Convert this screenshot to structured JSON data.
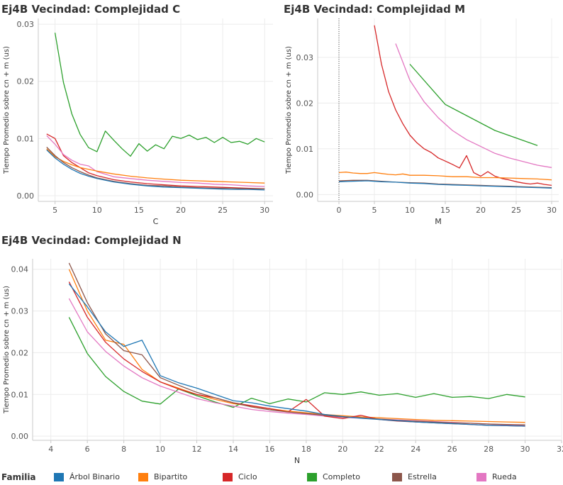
{
  "chart_data": [
    {
      "type": "line",
      "title": "Ej4B Vecindad: Complejidad C",
      "xlabel": "C",
      "ylabel": "Tiempo Promedio sobre cn + m (us)",
      "xlim": [
        3,
        31
      ],
      "ylim": [
        -0.001,
        0.031
      ],
      "xticks": [
        5,
        10,
        15,
        20,
        25,
        30
      ],
      "yticks": [
        0.0,
        0.01,
        0.02,
        0.03
      ],
      "ytick_labels": [
        "0.00",
        "0.01",
        "0.02",
        "0.03"
      ],
      "grid": true,
      "series": [
        {
          "name": "Completo",
          "color": "#2ca02c",
          "x": [
            5,
            6,
            7,
            8,
            9,
            10,
            11,
            12,
            13,
            14,
            15,
            16,
            17,
            18,
            19,
            20,
            21,
            22,
            23,
            24,
            25,
            26,
            27,
            28,
            29,
            30
          ],
          "y": [
            0.0285,
            0.0198,
            0.0143,
            0.0107,
            0.0084,
            0.0077,
            0.0113,
            0.0097,
            0.0082,
            0.0069,
            0.0091,
            0.0078,
            0.0089,
            0.0082,
            0.0104,
            0.01,
            0.0106,
            0.0098,
            0.0102,
            0.0093,
            0.0102,
            0.0093,
            0.0095,
            0.009,
            0.01,
            0.0094
          ]
        },
        {
          "name": "Ciclo",
          "color": "#d62728",
          "x": [
            4,
            5,
            6,
            7,
            8,
            9,
            10,
            12,
            14,
            16,
            18,
            20,
            22,
            24,
            26,
            28,
            30
          ],
          "y": [
            0.0108,
            0.01,
            0.007,
            0.0058,
            0.0049,
            0.004,
            0.0035,
            0.0028,
            0.0024,
            0.0021,
            0.0019,
            0.0017,
            0.0016,
            0.0015,
            0.0014,
            0.0013,
            0.0012
          ]
        },
        {
          "name": "Rueda",
          "color": "#e377c2",
          "x": [
            4,
            5,
            6,
            7,
            8,
            9,
            10,
            12,
            14,
            16,
            18,
            20,
            22,
            24,
            26,
            28,
            30
          ],
          "y": [
            0.0105,
            0.009,
            0.0072,
            0.0062,
            0.0055,
            0.0052,
            0.0042,
            0.0033,
            0.003,
            0.0027,
            0.0025,
            0.0023,
            0.0022,
            0.002,
            0.0019,
            0.0017,
            0.0016
          ]
        },
        {
          "name": "Bipartito",
          "color": "#ff7f0e",
          "x": [
            4,
            5,
            6,
            7,
            8,
            9,
            10,
            12,
            14,
            16,
            18,
            20,
            22,
            24,
            26,
            28,
            30
          ],
          "y": [
            0.0082,
            0.0068,
            0.006,
            0.0054,
            0.0049,
            0.0046,
            0.0043,
            0.0038,
            0.0034,
            0.0031,
            0.0029,
            0.0027,
            0.0026,
            0.0025,
            0.0024,
            0.0023,
            0.0022
          ]
        },
        {
          "name": "Estrella",
          "color": "#8c564b",
          "x": [
            4,
            5,
            6,
            7,
            8,
            9,
            10,
            12,
            14,
            16,
            18,
            20,
            22,
            24,
            26,
            28,
            30
          ],
          "y": [
            0.0085,
            0.007,
            0.0058,
            0.0049,
            0.0042,
            0.0036,
            0.0031,
            0.0025,
            0.0021,
            0.0018,
            0.0017,
            0.0015,
            0.0014,
            0.0013,
            0.0013,
            0.0012,
            0.0012
          ]
        },
        {
          "name": "Árbol Binario",
          "color": "#1f77b4",
          "x": [
            4,
            5,
            6,
            7,
            8,
            9,
            10,
            12,
            14,
            16,
            18,
            20,
            22,
            24,
            26,
            28,
            30
          ],
          "y": [
            0.008,
            0.0066,
            0.0055,
            0.0046,
            0.0039,
            0.0034,
            0.003,
            0.0024,
            0.002,
            0.0017,
            0.0015,
            0.0014,
            0.0013,
            0.0012,
            0.0011,
            0.0011,
            0.001
          ]
        }
      ]
    },
    {
      "type": "line",
      "title": "Ej4B Vecindad: Complejidad M",
      "xlabel": "M",
      "ylabel": "Tiempo Promedio sobre cn + m (us)",
      "xlim": [
        -3,
        31
      ],
      "ylim": [
        -0.0015,
        0.0385
      ],
      "xticks": [
        0,
        5,
        10,
        15,
        20,
        25,
        30
      ],
      "yticks": [
        0.0,
        0.01,
        0.02,
        0.03
      ],
      "ytick_labels": [
        "0.00",
        "0.01",
        "0.02",
        "0.03"
      ],
      "grid": true,
      "series": [
        {
          "name": "Ciclo",
          "color": "#d62728",
          "x": [
            5,
            6,
            7,
            8,
            9,
            10,
            11,
            12,
            13,
            14,
            15,
            16,
            17,
            18,
            19,
            20,
            21,
            22,
            23,
            24,
            25,
            26,
            27,
            28,
            29,
            30
          ],
          "y": [
            0.037,
            0.0285,
            0.0225,
            0.0185,
            0.0155,
            0.013,
            0.0113,
            0.01,
            0.0092,
            0.008,
            0.0073,
            0.0066,
            0.0058,
            0.0085,
            0.0048,
            0.004,
            0.005,
            0.004,
            0.0035,
            0.0032,
            0.0028,
            0.0025,
            0.0023,
            0.0025,
            0.0022,
            0.002
          ]
        },
        {
          "name": "Rueda",
          "color": "#e377c2",
          "x": [
            8,
            10,
            12,
            14,
            16,
            18,
            20,
            22,
            24,
            26,
            28,
            30
          ],
          "y": [
            0.033,
            0.025,
            0.0203,
            0.0168,
            0.014,
            0.012,
            0.0105,
            0.009,
            0.008,
            0.0072,
            0.0064,
            0.0059
          ]
        },
        {
          "name": "Completo",
          "color": "#2ca02c",
          "x": [
            10,
            15,
            22,
            28
          ],
          "y": [
            0.0285,
            0.0197,
            0.014,
            0.0107
          ]
        },
        {
          "name": "Bipartito",
          "color": "#ff7f0e",
          "x": [
            0,
            1,
            2,
            3,
            4,
            5,
            6,
            7,
            8,
            9,
            10,
            12,
            14,
            16,
            18,
            20,
            22,
            24,
            26,
            28,
            30
          ],
          "y": [
            0.0048,
            0.0049,
            0.0047,
            0.0046,
            0.0046,
            0.0048,
            0.0046,
            0.0044,
            0.0043,
            0.0045,
            0.0042,
            0.0042,
            0.0041,
            0.0039,
            0.0039,
            0.0037,
            0.0037,
            0.0036,
            0.0035,
            0.0034,
            0.0032
          ]
        },
        {
          "name": "Estrella",
          "color": "#8c564b",
          "x": [
            0,
            2,
            4,
            6,
            8,
            10,
            12,
            14,
            16,
            18,
            20,
            22,
            24,
            26,
            28,
            30
          ],
          "y": [
            0.003,
            0.0031,
            0.0031,
            0.0029,
            0.0027,
            0.0026,
            0.0025,
            0.0023,
            0.0022,
            0.0021,
            0.002,
            0.0019,
            0.0018,
            0.0017,
            0.0016,
            0.0015
          ]
        },
        {
          "name": "Árbol Binario",
          "color": "#1f77b4",
          "x": [
            0,
            2,
            4,
            6,
            8,
            10,
            12,
            14,
            16,
            18,
            20,
            22,
            24,
            26,
            28,
            30
          ],
          "y": [
            0.0028,
            0.0029,
            0.003,
            0.0028,
            0.0027,
            0.0025,
            0.0024,
            0.0022,
            0.0021,
            0.002,
            0.0019,
            0.0018,
            0.0017,
            0.0016,
            0.0015,
            0.0014
          ]
        }
      ]
    },
    {
      "type": "line",
      "title": "Ej4B Vecindad: Complejidad N",
      "xlabel": "N",
      "ylabel": "Tiempo Promedio sobre cn + m (us)",
      "xlim": [
        3,
        32
      ],
      "ylim": [
        -0.001,
        0.0425
      ],
      "xticks": [
        4,
        6,
        8,
        10,
        12,
        14,
        16,
        18,
        20,
        22,
        24,
        26,
        28,
        30,
        32
      ],
      "yticks": [
        0.0,
        0.01,
        0.02,
        0.03,
        0.04
      ],
      "ytick_labels": [
        "0.00",
        "0.01",
        "0.02",
        "0.03",
        "0.04"
      ],
      "grid": true,
      "series": [
        {
          "name": "Completo",
          "color": "#2ca02c",
          "x": [
            5,
            6,
            7,
            8,
            9,
            10,
            11,
            12,
            13,
            14,
            15,
            16,
            17,
            18,
            19,
            20,
            21,
            22,
            23,
            24,
            25,
            26,
            27,
            28,
            29,
            30
          ],
          "y": [
            0.0285,
            0.0198,
            0.0143,
            0.0107,
            0.0084,
            0.0077,
            0.0113,
            0.0097,
            0.0082,
            0.0069,
            0.0091,
            0.0078,
            0.0089,
            0.0082,
            0.0104,
            0.01,
            0.0106,
            0.0098,
            0.0102,
            0.0093,
            0.0102,
            0.0093,
            0.0095,
            0.009,
            0.01,
            0.0094
          ]
        },
        {
          "name": "Rueda",
          "color": "#e377c2",
          "x": [
            5,
            6,
            7,
            8,
            9,
            10,
            11,
            12,
            13,
            14,
            15,
            16,
            17,
            18,
            19,
            20,
            21,
            22,
            23,
            24,
            25,
            26,
            27,
            28,
            29,
            30
          ],
          "y": [
            0.033,
            0.025,
            0.0203,
            0.0168,
            0.014,
            0.012,
            0.0105,
            0.009,
            0.008,
            0.0072,
            0.0064,
            0.0059,
            0.0055,
            0.0052,
            0.0048,
            0.0045,
            0.0043,
            0.0041,
            0.0039,
            0.0037,
            0.0035,
            0.0033,
            0.0031,
            0.0029,
            0.0027,
            0.0025
          ]
        },
        {
          "name": "Bipartito",
          "color": "#ff7f0e",
          "x": [
            5,
            6,
            7,
            8,
            9,
            10,
            11,
            12,
            13,
            14,
            15,
            16,
            17,
            18,
            19,
            20,
            21,
            22,
            23,
            24,
            25,
            26,
            27,
            28,
            29,
            30
          ],
          "y": [
            0.04,
            0.03,
            0.023,
            0.022,
            0.016,
            0.013,
            0.0115,
            0.01,
            0.0088,
            0.0078,
            0.0072,
            0.0066,
            0.006,
            0.0056,
            0.0052,
            0.0049,
            0.0046,
            0.0044,
            0.0042,
            0.004,
            0.0038,
            0.0037,
            0.0036,
            0.0035,
            0.0034,
            0.0033
          ]
        },
        {
          "name": "Ciclo",
          "color": "#d62728",
          "x": [
            5,
            6,
            7,
            8,
            9,
            10,
            11,
            12,
            13,
            14,
            15,
            16,
            17,
            18,
            19,
            20,
            21,
            22,
            23,
            24,
            25,
            26,
            27,
            28,
            29,
            30
          ],
          "y": [
            0.037,
            0.0285,
            0.0225,
            0.0185,
            0.0155,
            0.013,
            0.0113,
            0.01,
            0.0092,
            0.008,
            0.0073,
            0.0066,
            0.0058,
            0.0088,
            0.0048,
            0.0042,
            0.005,
            0.004,
            0.0036,
            0.0034,
            0.0032,
            0.003,
            0.0028,
            0.0026,
            0.0025,
            0.0024
          ]
        },
        {
          "name": "Estrella",
          "color": "#8c564b",
          "x": [
            5,
            6,
            7,
            8,
            9,
            10,
            11,
            12,
            13,
            14,
            15,
            16,
            17,
            18,
            19,
            20,
            21,
            22,
            23,
            24,
            25,
            26,
            27,
            28,
            29,
            30
          ],
          "y": [
            0.0415,
            0.032,
            0.0245,
            0.0205,
            0.0195,
            0.014,
            0.0122,
            0.0105,
            0.0092,
            0.008,
            0.007,
            0.0063,
            0.0058,
            0.0054,
            0.005,
            0.0046,
            0.0044,
            0.0041,
            0.0038,
            0.0036,
            0.0034,
            0.0032,
            0.0031,
            0.0029,
            0.0028,
            0.0027
          ]
        },
        {
          "name": "Árbol Binario",
          "color": "#1f77b4",
          "x": [
            5,
            6,
            7,
            8,
            9,
            10,
            11,
            12,
            13,
            14,
            15,
            16,
            17,
            18,
            19,
            20,
            21,
            22,
            23,
            24,
            25,
            26,
            27,
            28,
            29,
            30
          ],
          "y": [
            0.0365,
            0.031,
            0.025,
            0.0215,
            0.023,
            0.0145,
            0.0128,
            0.0115,
            0.01,
            0.0085,
            0.008,
            0.0072,
            0.0066,
            0.006,
            0.0052,
            0.0047,
            0.0043,
            0.004,
            0.0037,
            0.0034,
            0.0032,
            0.003,
            0.0028,
            0.0026,
            0.0025,
            0.0024
          ]
        }
      ]
    }
  ],
  "legend": {
    "title": "Familia",
    "items": [
      {
        "label": "Árbol Binario",
        "color": "#1f77b4"
      },
      {
        "label": "Bipartito",
        "color": "#ff7f0e"
      },
      {
        "label": "Ciclo",
        "color": "#d62728"
      },
      {
        "label": "Completo",
        "color": "#2ca02c"
      },
      {
        "label": "Estrella",
        "color": "#8c564b"
      },
      {
        "label": "Rueda",
        "color": "#e377c2"
      }
    ]
  }
}
